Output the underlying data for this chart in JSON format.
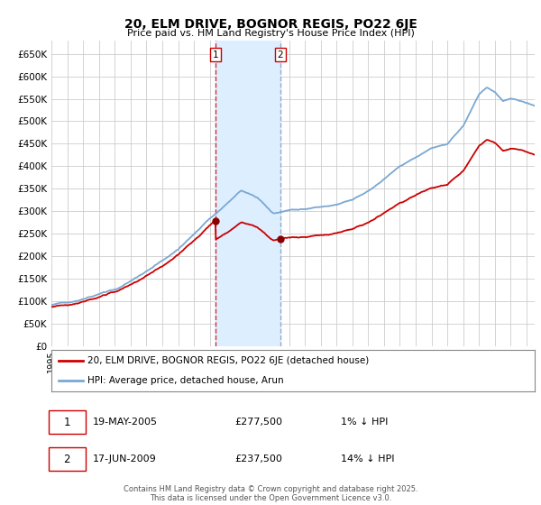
{
  "title": "20, ELM DRIVE, BOGNOR REGIS, PO22 6JE",
  "subtitle": "Price paid vs. HM Land Registry's House Price Index (HPI)",
  "ylabel_ticks": [
    "£0",
    "£50K",
    "£100K",
    "£150K",
    "£200K",
    "£250K",
    "£300K",
    "£350K",
    "£400K",
    "£450K",
    "£500K",
    "£550K",
    "£600K",
    "£650K"
  ],
  "ytick_values": [
    0,
    50000,
    100000,
    150000,
    200000,
    250000,
    300000,
    350000,
    400000,
    450000,
    500000,
    550000,
    600000,
    650000
  ],
  "ylim": [
    0,
    680000
  ],
  "xlim_start": 1995.0,
  "xlim_end": 2025.5,
  "t1_date": 2005.38,
  "t1_price": 277500,
  "t2_date": 2009.46,
  "t2_price": 237500,
  "legend_property_label": "20, ELM DRIVE, BOGNOR REGIS, PO22 6JE (detached house)",
  "legend_hpi_label": "HPI: Average price, detached house, Arun",
  "table_row1": [
    "1",
    "19-MAY-2005",
    "£277,500",
    "1% ↓ HPI"
  ],
  "table_row2": [
    "2",
    "17-JUN-2009",
    "£237,500",
    "14% ↓ HPI"
  ],
  "footer": "Contains HM Land Registry data © Crown copyright and database right 2025.\nThis data is licensed under the Open Government Licence v3.0.",
  "property_color": "#cc0000",
  "hpi_color": "#7aa8d2",
  "shading_color": "#ddeeff",
  "background_color": "#ffffff",
  "grid_color": "#cccccc"
}
